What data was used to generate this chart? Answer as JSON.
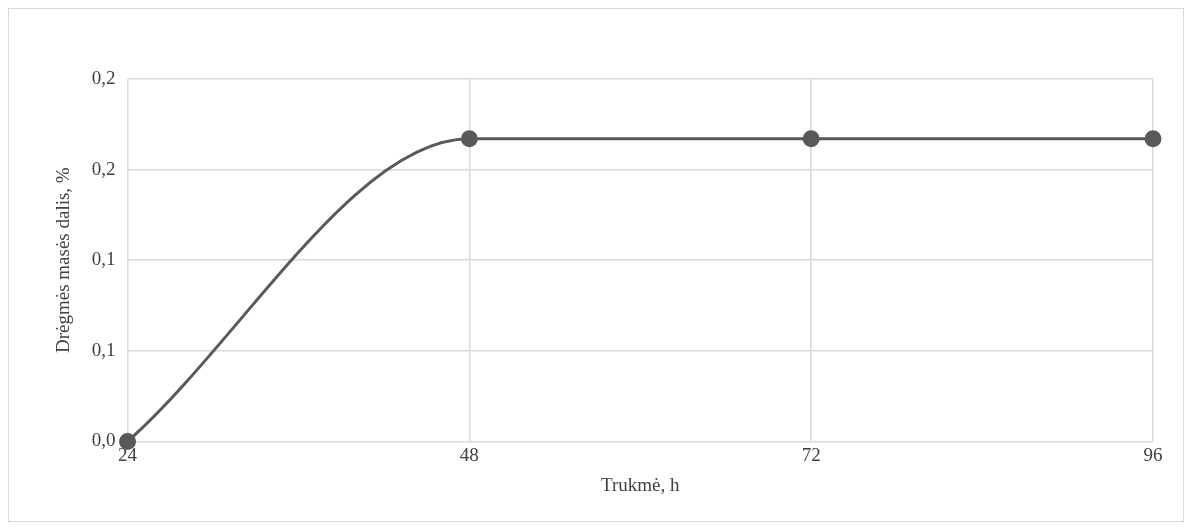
{
  "chart_data": {
    "type": "line",
    "xlabel": "Trukmė, h",
    "ylabel": "Drėgmės masės dalis, %",
    "x": [
      24,
      48,
      72,
      96
    ],
    "series": [
      {
        "color": "#595959",
        "values": [
          0,
          0.167,
          0.167,
          0.167
        ]
      }
    ],
    "xlim": [
      24,
      96
    ],
    "xticks": [
      24,
      48,
      72,
      96
    ],
    "ylim": [
      0,
      0.2
    ],
    "yticks": [
      {
        "value": 0,
        "label": "0,0"
      },
      {
        "value": 0.05,
        "label": "0,1"
      },
      {
        "value": 0.1,
        "label": "0,1"
      },
      {
        "value": 0.15,
        "label": "0,2"
      },
      {
        "value": 0.2,
        "label": "0,2"
      }
    ],
    "grid": true,
    "legend": false,
    "marker": "circle",
    "line_style": "solid"
  }
}
